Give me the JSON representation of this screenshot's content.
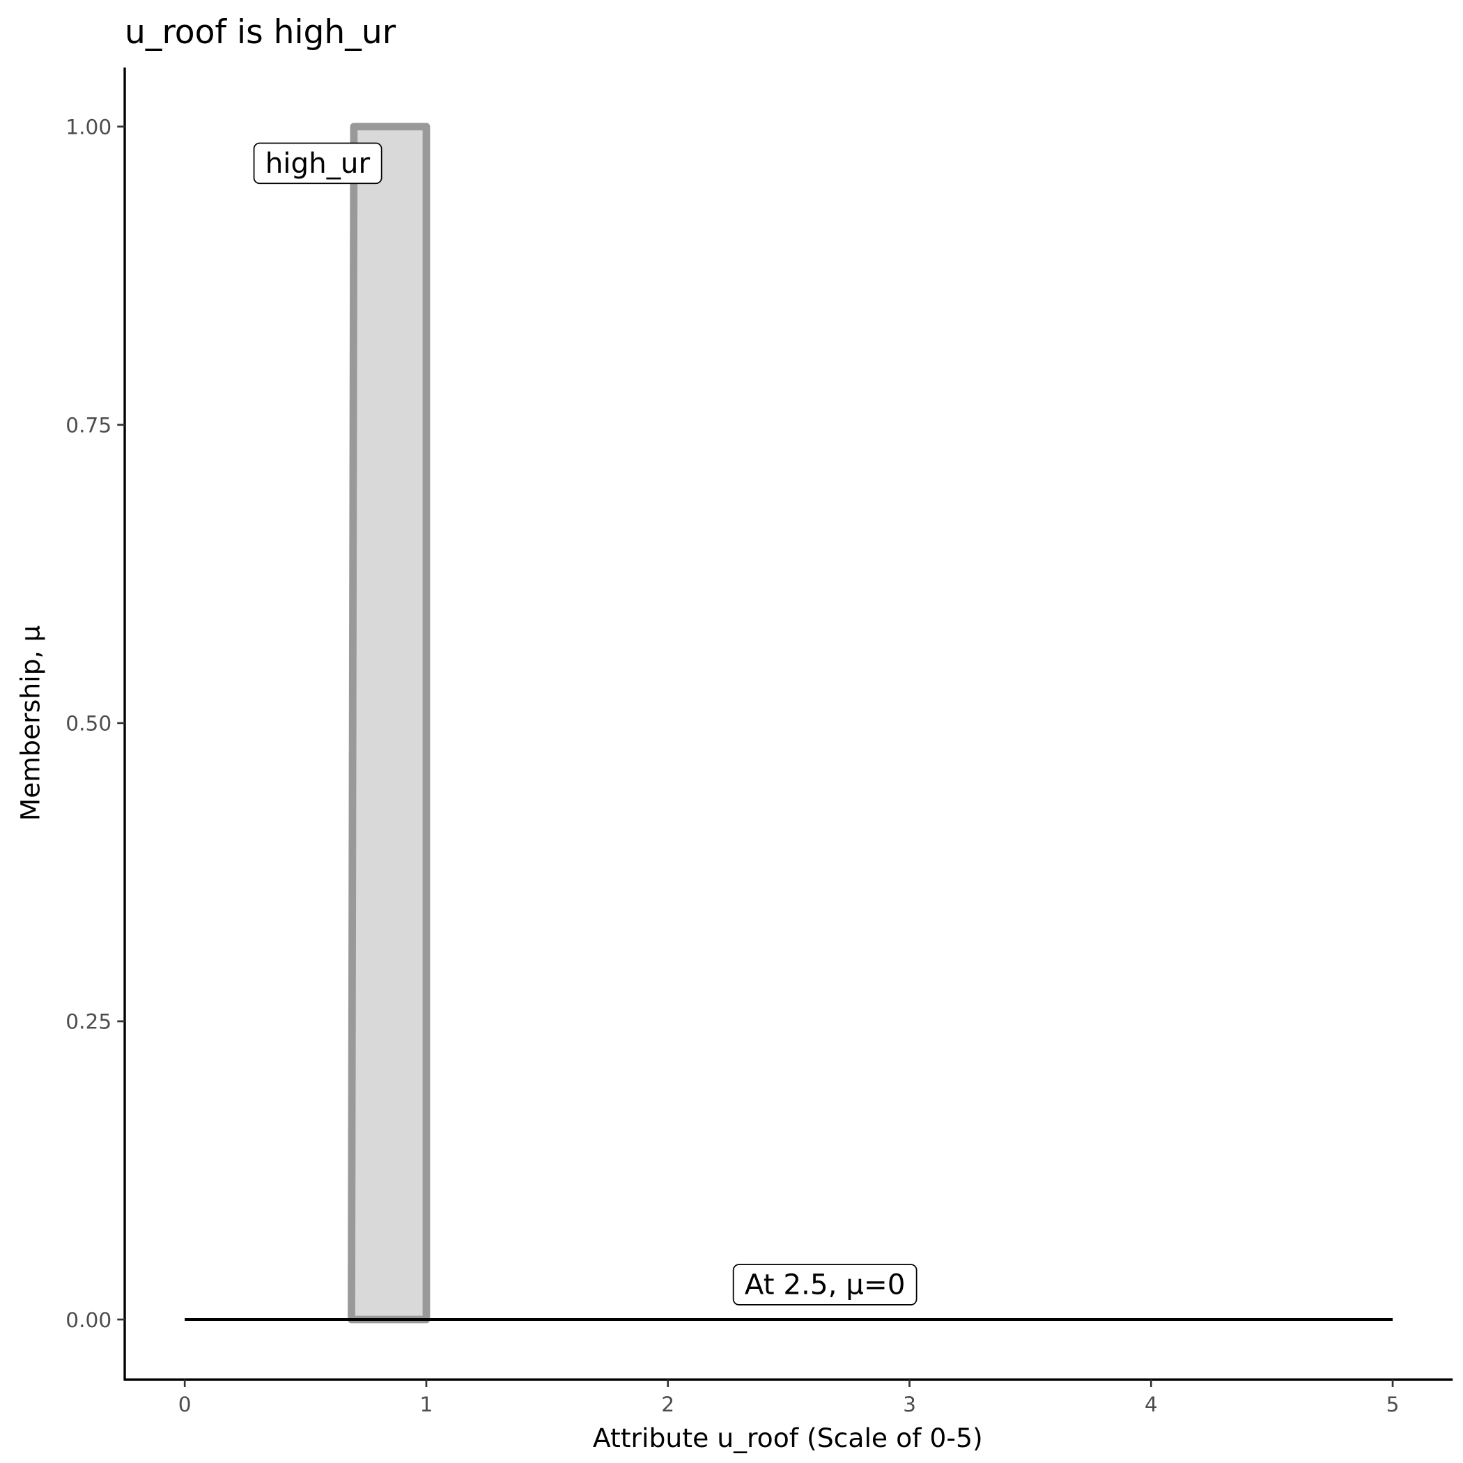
{
  "chart_data": {
    "type": "area",
    "title": "u_roof is high_ur",
    "xlabel": "Attribute u_roof (Scale of 0-5)",
    "ylabel": "Membership, μ",
    "xlim": [
      -0.25,
      5.25
    ],
    "ylim": [
      -0.05,
      1.05
    ],
    "x_ticks": [
      "0",
      "1",
      "2",
      "3",
      "4",
      "5"
    ],
    "x_tick_values": [
      0,
      1,
      2,
      3,
      4,
      5
    ],
    "y_ticks": [
      "0.00",
      "0.25",
      "0.50",
      "0.75",
      "1.00"
    ],
    "y_tick_values": [
      0,
      0.25,
      0.5,
      0.75,
      1
    ],
    "grid": false,
    "series": [
      {
        "x": [
          0.69,
          0.7,
          1.0,
          1.0
        ],
        "y": [
          0,
          1,
          1,
          0
        ],
        "fill": "#d9d9d9",
        "stroke": "#999999"
      }
    ],
    "reference_line": {
      "x": [
        0,
        5
      ],
      "y": [
        0,
        0
      ],
      "color": "#000000"
    },
    "annotations": [
      {
        "text": "high_ur",
        "x": 0.55,
        "y": 0.97
      },
      {
        "text": "At 2.5, μ=0",
        "x": 2.65,
        "y": 0.03
      }
    ]
  }
}
